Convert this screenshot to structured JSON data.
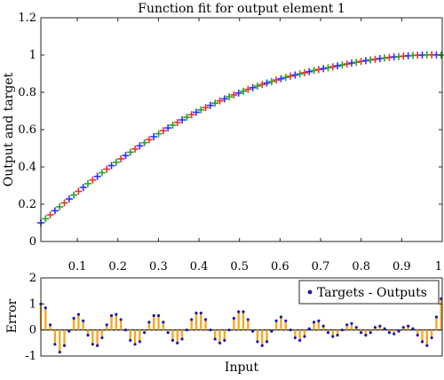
{
  "chart_data": [
    {
      "type": "scatter",
      "title": "Function fit for output element 1",
      "xlabel": "",
      "ylabel": "Output and target",
      "xlim": [
        0.01,
        1.0
      ],
      "ylim": [
        0,
        1.2
      ],
      "xticks": [
        0.1,
        0.2,
        0.3,
        0.4,
        0.5,
        0.6,
        0.7,
        0.8,
        0.9,
        1
      ],
      "xtick_labels": [
        "0.1",
        "0.2",
        "0.3",
        "0.4",
        "0.5",
        "0.6",
        "0.7",
        "0.8",
        "0.9",
        "1"
      ],
      "yticks": [
        0,
        0.2,
        0.4,
        0.6,
        0.8,
        1,
        1.2
      ],
      "ytick_labels": [
        "0",
        "0.2",
        "0.4",
        "0.6",
        "0.8",
        "1",
        "1.2"
      ],
      "grid": false,
      "legend": false,
      "series": [
        {
          "marker": "+",
          "colors": [
            "#3030ff",
            "#2aa02a",
            "#e8322f"
          ],
          "x": [
            0.01,
            0.0216,
            0.0332,
            0.0448,
            0.0565,
            0.0681,
            0.0797,
            0.0913,
            0.1029,
            0.1145,
            0.1261,
            0.1378,
            0.1494,
            0.161,
            0.1726,
            0.1842,
            0.1958,
            0.2074,
            0.2191,
            0.2307,
            0.2423,
            0.2539,
            0.2655,
            0.2771,
            0.2887,
            0.3004,
            0.312,
            0.3236,
            0.3352,
            0.3468,
            0.3584,
            0.3701,
            0.3817,
            0.3933,
            0.4049,
            0.4165,
            0.4281,
            0.4397,
            0.4514,
            0.463,
            0.4746,
            0.4862,
            0.4978,
            0.5094,
            0.521,
            0.5327,
            0.5443,
            0.5559,
            0.5675,
            0.5791,
            0.5907,
            0.6024,
            0.614,
            0.6256,
            0.6372,
            0.6488,
            0.6604,
            0.672,
            0.6837,
            0.6953,
            0.7069,
            0.7185,
            0.7301,
            0.7417,
            0.7533,
            0.765,
            0.7766,
            0.7882,
            0.7998,
            0.8114,
            0.823,
            0.8346,
            0.8463,
            0.8579,
            0.8695,
            0.8811,
            0.8927,
            0.9043,
            0.916,
            0.9276,
            0.9392,
            0.9508,
            0.9624,
            0.974,
            0.9856,
            0.9973
          ],
          "y": [
            0.1,
            0.122,
            0.143,
            0.165,
            0.186,
            0.207,
            0.228,
            0.249,
            0.269,
            0.29,
            0.31,
            0.33,
            0.349,
            0.369,
            0.388,
            0.407,
            0.425,
            0.443,
            0.461,
            0.479,
            0.496,
            0.513,
            0.53,
            0.546,
            0.562,
            0.578,
            0.594,
            0.609,
            0.624,
            0.638,
            0.652,
            0.666,
            0.68,
            0.693,
            0.706,
            0.718,
            0.73,
            0.742,
            0.754,
            0.765,
            0.776,
            0.786,
            0.796,
            0.806,
            0.816,
            0.825,
            0.834,
            0.842,
            0.85,
            0.858,
            0.866,
            0.873,
            0.88,
            0.887,
            0.893,
            0.899,
            0.905,
            0.911,
            0.917,
            0.922,
            0.927,
            0.932,
            0.937,
            0.942,
            0.947,
            0.952,
            0.957,
            0.961,
            0.966,
            0.97,
            0.974,
            0.977,
            0.981,
            0.984,
            0.987,
            0.99,
            0.992,
            0.994,
            0.996,
            0.998,
            0.999,
            1,
            1.001,
            1.001,
            1.001,
            1.0
          ]
        }
      ]
    },
    {
      "type": "bar",
      "title": "",
      "xlabel": "Input",
      "ylabel": "Error",
      "xlim": [
        0.01,
        1.0
      ],
      "ylim": [
        -1,
        2
      ],
      "yticks": [
        -1,
        0,
        1,
        2
      ],
      "ytick_labels": [
        "-1",
        "0",
        "1",
        "2"
      ],
      "grid": false,
      "legend": "top-right",
      "legend_entries": [
        "Targets - Outputs"
      ],
      "bar_color": "#f5a623",
      "marker_color": "#1a1aa8",
      "series": [
        {
          "name": "Targets - Outputs",
          "x": [
            0.01,
            0.0216,
            0.0332,
            0.0448,
            0.0565,
            0.0681,
            0.0797,
            0.0913,
            0.1029,
            0.1145,
            0.1261,
            0.1378,
            0.1494,
            0.161,
            0.1726,
            0.1842,
            0.1958,
            0.2074,
            0.2191,
            0.2307,
            0.2423,
            0.2539,
            0.2655,
            0.2771,
            0.2887,
            0.3004,
            0.312,
            0.3236,
            0.3352,
            0.3468,
            0.3584,
            0.3701,
            0.3817,
            0.3933,
            0.4049,
            0.4165,
            0.4281,
            0.4397,
            0.4514,
            0.463,
            0.4746,
            0.4862,
            0.4978,
            0.5094,
            0.521,
            0.5327,
            0.5443,
            0.5559,
            0.5675,
            0.5791,
            0.5907,
            0.6024,
            0.614,
            0.6256,
            0.6372,
            0.6488,
            0.6604,
            0.672,
            0.6837,
            0.6953,
            0.7069,
            0.7185,
            0.7301,
            0.7417,
            0.7533,
            0.765,
            0.7766,
            0.7882,
            0.7998,
            0.8114,
            0.823,
            0.8346,
            0.8463,
            0.8579,
            0.8695,
            0.8811,
            0.8927,
            0.9043,
            0.916,
            0.9276,
            0.9392,
            0.9508,
            0.9624,
            0.974,
            0.9856,
            0.9973
          ],
          "values": [
            1.0,
            0.85,
            0.2,
            -0.55,
            -0.85,
            -0.6,
            -0.05,
            0.45,
            0.6,
            0.35,
            -0.2,
            -0.55,
            -0.6,
            -0.3,
            0.2,
            0.55,
            0.6,
            0.4,
            0.0,
            -0.4,
            -0.55,
            -0.45,
            -0.1,
            0.3,
            0.55,
            0.55,
            0.3,
            -0.1,
            -0.4,
            -0.5,
            -0.35,
            0.0,
            0.4,
            0.65,
            0.65,
            0.4,
            0.0,
            -0.35,
            -0.5,
            -0.4,
            0.0,
            0.45,
            0.7,
            0.7,
            0.4,
            -0.05,
            -0.45,
            -0.6,
            -0.45,
            -0.05,
            0.35,
            0.5,
            0.35,
            0.0,
            -0.3,
            -0.4,
            -0.25,
            0.05,
            0.3,
            0.35,
            0.15,
            -0.1,
            -0.25,
            -0.2,
            0.0,
            0.2,
            0.25,
            0.1,
            -0.1,
            -0.2,
            -0.1,
            0.1,
            0.15,
            0.05,
            -0.1,
            -0.15,
            -0.05,
            0.1,
            0.15,
            0.05,
            -0.2,
            -0.45,
            -0.6,
            -0.3,
            0.5,
            1.2
          ]
        }
      ]
    }
  ]
}
